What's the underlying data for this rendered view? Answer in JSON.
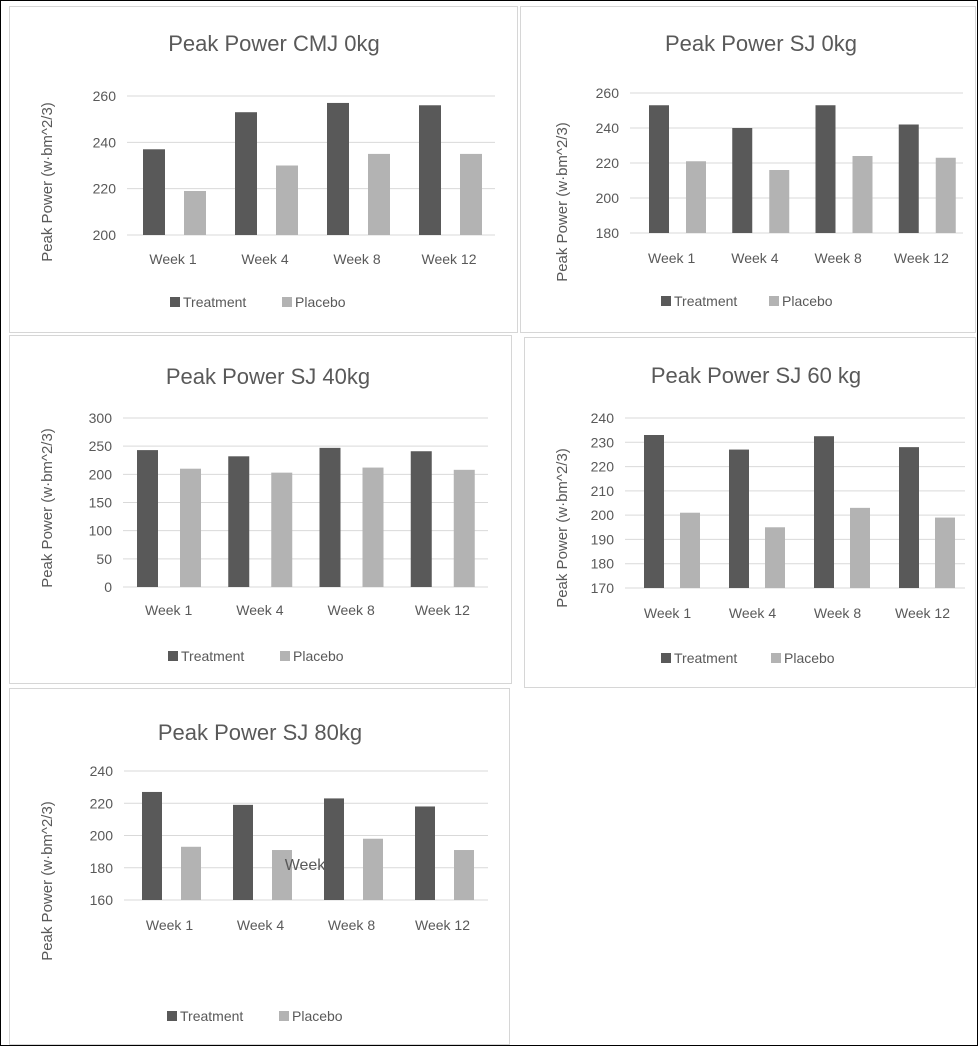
{
  "colors": {
    "treatment": "#595959",
    "placebo": "#b3b3b3",
    "grid": "#d9d9d9",
    "text": "#595959"
  },
  "chart_data": [
    {
      "type": "bar",
      "title": "Peak Power CMJ 0kg",
      "ylabel": "Peak Power (w·bm^2/3)",
      "xlabel": "",
      "categories": [
        "Week 1",
        "Week 4",
        "Week 8",
        "Week 12"
      ],
      "ylim": [
        200,
        260
      ],
      "yticks": [
        200,
        220,
        240,
        260
      ],
      "series": [
        {
          "name": "Treatment",
          "values": [
            237,
            253,
            257,
            256
          ]
        },
        {
          "name": "Placebo",
          "values": [
            219,
            230,
            235,
            235
          ]
        }
      ],
      "grid": true,
      "legend": "bottom"
    },
    {
      "type": "bar",
      "title": "Peak Power SJ 0kg",
      "ylabel": "Peak Power (w·bm^2/3)",
      "xlabel": "",
      "categories": [
        "Week 1",
        "Week 4",
        "Week 8",
        "Week 12"
      ],
      "ylim": [
        180,
        260
      ],
      "yticks": [
        180,
        200,
        220,
        240,
        260
      ],
      "series": [
        {
          "name": "Treatment",
          "values": [
            253,
            240,
            253,
            242
          ]
        },
        {
          "name": "Placebo",
          "values": [
            221,
            216,
            224,
            223
          ]
        }
      ],
      "grid": true,
      "legend": "bottom"
    },
    {
      "type": "bar",
      "title": "Peak Power SJ 40kg",
      "ylabel": "Peak Power (w·bm^2/3)",
      "xlabel": "",
      "categories": [
        "Week 1",
        "Week 4",
        "Week 8",
        "Week 12"
      ],
      "ylim": [
        0,
        300
      ],
      "yticks": [
        0,
        50,
        100,
        150,
        200,
        250,
        300
      ],
      "series": [
        {
          "name": "Treatment",
          "values": [
            243,
            232,
            247,
            241
          ]
        },
        {
          "name": "Placebo",
          "values": [
            210,
            203,
            212,
            208
          ]
        }
      ],
      "grid": true,
      "legend": "bottom"
    },
    {
      "type": "bar",
      "title": "Peak Power SJ 60 kg",
      "ylabel": "Peak Power (w·bm^2/3)",
      "xlabel": "",
      "categories": [
        "Week 1",
        "Week 4",
        "Week 8",
        "Week 12"
      ],
      "ylim": [
        170,
        240
      ],
      "yticks": [
        170,
        180,
        190,
        200,
        210,
        220,
        230,
        240
      ],
      "series": [
        {
          "name": "Treatment",
          "values": [
            233,
            227,
            232.5,
            228
          ]
        },
        {
          "name": "Placebo",
          "values": [
            201,
            195,
            203,
            199
          ]
        }
      ],
      "grid": true,
      "legend": "bottom"
    },
    {
      "type": "bar",
      "title": "Peak Power SJ 80kg",
      "ylabel": "Peak Power (w·bm^2/3)",
      "xlabel": "Week",
      "categories": [
        "Week 1",
        "Week 4",
        "Week 8",
        "Week 12"
      ],
      "ylim": [
        160,
        240
      ],
      "yticks": [
        160,
        180,
        200,
        220,
        240
      ],
      "series": [
        {
          "name": "Treatment",
          "values": [
            227,
            219,
            223,
            218
          ]
        },
        {
          "name": "Placebo",
          "values": [
            193,
            191,
            198,
            191
          ]
        }
      ],
      "grid": true,
      "legend": "bottom"
    }
  ]
}
